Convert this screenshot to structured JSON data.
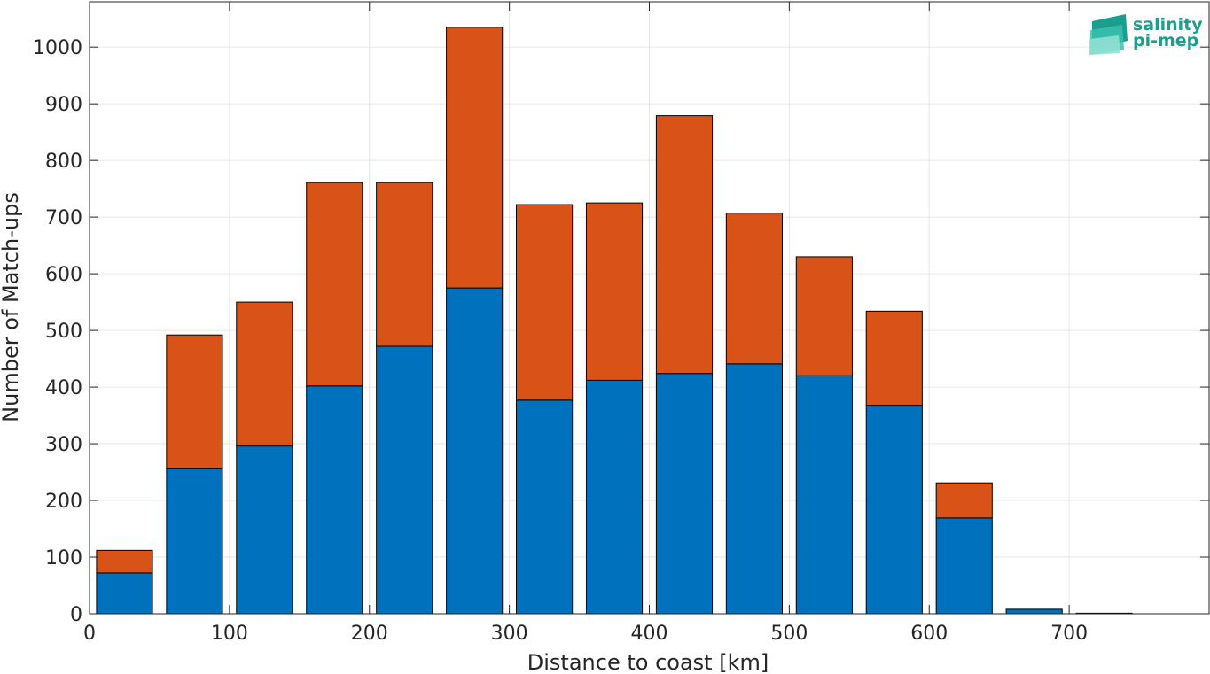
{
  "chart_data": {
    "type": "bar",
    "stacked": true,
    "x": [
      25,
      75,
      125,
      175,
      225,
      275,
      325,
      375,
      425,
      475,
      525,
      575,
      625,
      675,
      725
    ],
    "bar_width": 40,
    "series": [
      {
        "color": "#0072BD",
        "values": [
          72,
          257,
          296,
          402,
          472,
          575,
          377,
          412,
          424,
          441,
          420,
          368,
          169,
          8,
          1
        ]
      },
      {
        "color": "#D95319",
        "values": [
          40,
          235,
          254,
          359,
          289,
          460,
          345,
          313,
          455,
          266,
          210,
          166,
          62,
          0,
          0
        ]
      }
    ],
    "xlabel": "Distance to coast [km]",
    "ylabel": "Number of Match-ups",
    "xlim": [
      0,
      800
    ],
    "ylim": [
      0,
      1080
    ],
    "xticks": [
      0,
      100,
      200,
      300,
      400,
      500,
      600,
      700
    ],
    "yticks": [
      0,
      100,
      200,
      300,
      400,
      500,
      600,
      700,
      800,
      900,
      1000
    ],
    "grid": true
  },
  "logo": {
    "line1": "salinity",
    "line2": "pi-mep",
    "color": "#1a9e8e"
  }
}
